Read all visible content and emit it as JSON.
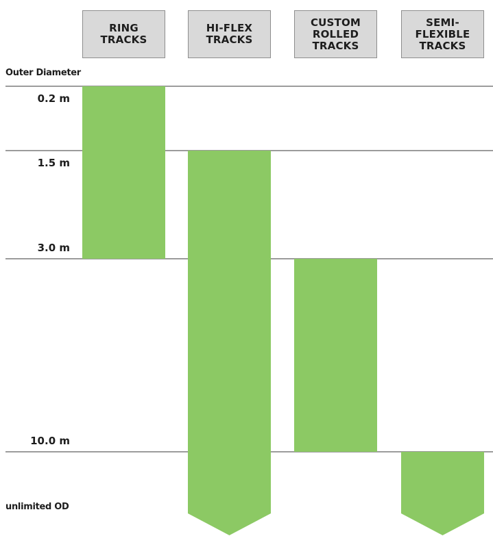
{
  "chart_data": {
    "type": "range-bar",
    "y_axis_title": "Outer Diameter",
    "y_levels": [
      "0.2 m",
      "1.5 m",
      "3.0 m",
      "10.0 m",
      "unlimited OD"
    ],
    "categories": [
      "RING\nTRACKS",
      "HI-FLEX\nTRACKS",
      "CUSTOM\nROLLED\nTRACKS",
      "SEMI-\nFLEXIBLE\nTRACKS"
    ],
    "series": [
      {
        "values": [
          {
            "from": "0.2 m",
            "to": "3.0 m",
            "open_ended": false
          },
          {
            "from": "1.5 m",
            "to": "unlimited OD",
            "open_ended": true
          },
          {
            "from": "3.0 m",
            "to": "10.0 m",
            "open_ended": false
          },
          {
            "from": "10.0 m",
            "to": "unlimited OD",
            "open_ended": true
          }
        ]
      }
    ],
    "colors": {
      "bar": "#8cc964",
      "header_bg": "#d9d9d9",
      "divider": "#9b9b9b",
      "text": "#1d1d1d"
    }
  }
}
